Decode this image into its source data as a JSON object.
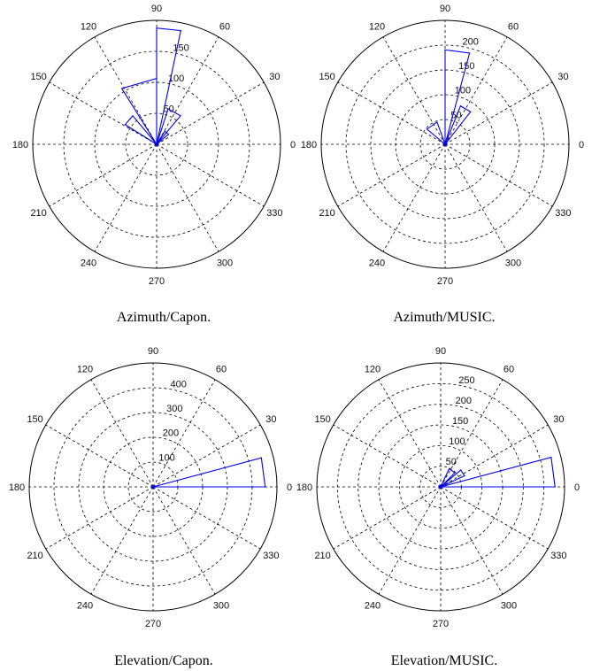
{
  "chart_data": [
    {
      "type": "polar",
      "caption": "Azimuth/Capon.",
      "angle_ticks": [
        "0",
        "30",
        "60",
        "90",
        "120",
        "150",
        "180",
        "210",
        "240",
        "270",
        "300",
        "330"
      ],
      "r_ticks": [
        "50",
        "100",
        "150"
      ],
      "r_max": 160,
      "series": [
        {
          "values": [
            {
              "theta": 0,
              "r": 0
            },
            {
              "theta": 90,
              "r": 150
            },
            {
              "theta": 78,
              "r": 150
            },
            {
              "theta": 0,
              "r": 0
            },
            {
              "theta": 122,
              "r": 85
            },
            {
              "theta": 90,
              "r": 85
            },
            {
              "theta": 0,
              "r": 0
            },
            {
              "theta": 148,
              "r": 48
            },
            {
              "theta": 130,
              "r": 48
            },
            {
              "theta": 0,
              "r": 0
            },
            {
              "theta": 72,
              "r": 48
            },
            {
              "theta": 50,
              "r": 48
            },
            {
              "theta": 0,
              "r": 0
            },
            {
              "theta": 58,
              "r": 20
            },
            {
              "theta": 40,
              "r": 20
            },
            {
              "theta": 0,
              "r": 0
            }
          ]
        }
      ]
    },
    {
      "type": "polar",
      "caption": "Azimuth/MUSIC.",
      "angle_ticks": [
        "0",
        "30",
        "60",
        "90",
        "120",
        "150",
        "180",
        "210",
        "240",
        "270",
        "300",
        "330"
      ],
      "r_ticks": [
        "50",
        "100",
        "150",
        "200"
      ],
      "r_max": 210,
      "series": [
        {
          "values": [
            {
              "theta": 0,
              "r": 0
            },
            {
              "theta": 90,
              "r": 160
            },
            {
              "theta": 75,
              "r": 160
            },
            {
              "theta": 0,
              "r": 0
            },
            {
              "theta": 68,
              "r": 70
            },
            {
              "theta": 52,
              "r": 70
            },
            {
              "theta": 0,
              "r": 0
            },
            {
              "theta": 140,
              "r": 40
            },
            {
              "theta": 110,
              "r": 40
            },
            {
              "theta": 0,
              "r": 0
            }
          ]
        }
      ]
    },
    {
      "type": "polar",
      "caption": "Elevation/Capon.",
      "angle_ticks": [
        "0",
        "30",
        "60",
        "90",
        "120",
        "150",
        "180",
        "210",
        "240",
        "270",
        "300",
        "330"
      ],
      "r_ticks": [
        "100",
        "200",
        "300",
        "400"
      ],
      "r_max": 420,
      "series": [
        {
          "values": [
            {
              "theta": 0,
              "r": 0
            },
            {
              "theta": 0,
              "r": 380
            },
            {
              "theta": 15,
              "r": 380
            },
            {
              "theta": 0,
              "r": 0
            }
          ]
        }
      ]
    },
    {
      "type": "polar",
      "caption": "Elevation/MUSIC.",
      "angle_ticks": [
        "0",
        "30",
        "60",
        "90",
        "120",
        "150",
        "180",
        "210",
        "240",
        "270",
        "300",
        "330"
      ],
      "r_ticks": [
        "50",
        "100",
        "150",
        "200",
        "250"
      ],
      "r_max": 260,
      "series": [
        {
          "values": [
            {
              "theta": 0,
              "r": 0
            },
            {
              "theta": 0,
              "r": 240
            },
            {
              "theta": 15,
              "r": 240
            },
            {
              "theta": 0,
              "r": 0
            },
            {
              "theta": 40,
              "r": 55
            },
            {
              "theta": 25,
              "r": 55
            },
            {
              "theta": 0,
              "r": 0
            },
            {
              "theta": 65,
              "r": 42
            },
            {
              "theta": 45,
              "r": 42
            },
            {
              "theta": 0,
              "r": 0
            }
          ]
        }
      ]
    }
  ]
}
